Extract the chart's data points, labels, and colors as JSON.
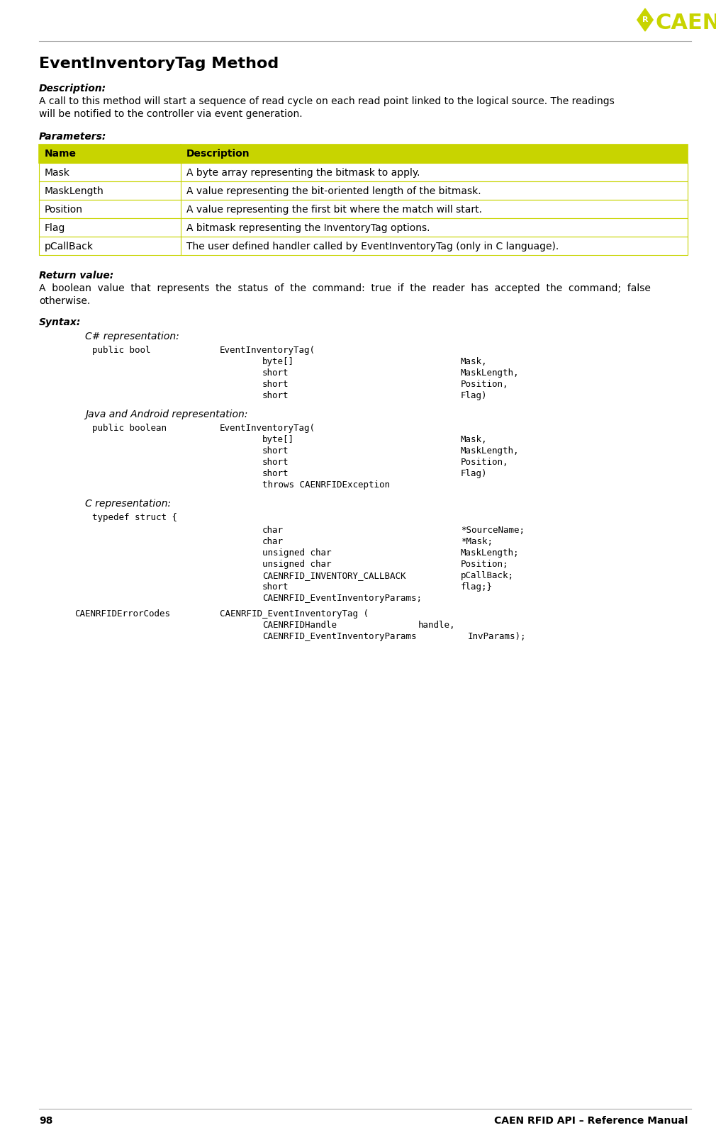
{
  "page_number": "98",
  "footer_text": "CAEN RFID API – Reference Manual",
  "title": "EventInventoryTag Method",
  "description_label": "Description:",
  "description_text_line1": "A call to this method will start a sequence of read cycle on each read point linked to the logical source. The readings",
  "description_text_line2": "will be notified to the controller via event generation.",
  "parameters_label": "Parameters:",
  "table_header": [
    "Name",
    "Description"
  ],
  "table_header_bg": "#c8d400",
  "table_rows": [
    [
      "Mask",
      "A byte array representing the bitmask to apply."
    ],
    [
      "MaskLength",
      "A value representing the bit-oriented length of the bitmask."
    ],
    [
      "Position",
      "A value representing the first bit where the match will start."
    ],
    [
      "Flag",
      "A bitmask representing the InventoryTag options."
    ],
    [
      "pCallBack",
      "The user defined handler called by EventInventoryTag (only in C language)."
    ]
  ],
  "table_row_bg": "#ffffff",
  "table_border": "#c8d400",
  "return_label": "Return value:",
  "return_text_line1": "A  boolean  value  that  represents  the  status  of  the  command:  true  if  the  reader  has  accepted  the  command;  false",
  "return_text_line2": "otherwise.",
  "syntax_label": "Syntax:",
  "csharp_label": "C# representation:",
  "java_label": "Java and Android representation:",
  "c_label": "C representation:",
  "logo_color": "#c8d400",
  "bg_color": "#ffffff",
  "text_color": "#000000"
}
